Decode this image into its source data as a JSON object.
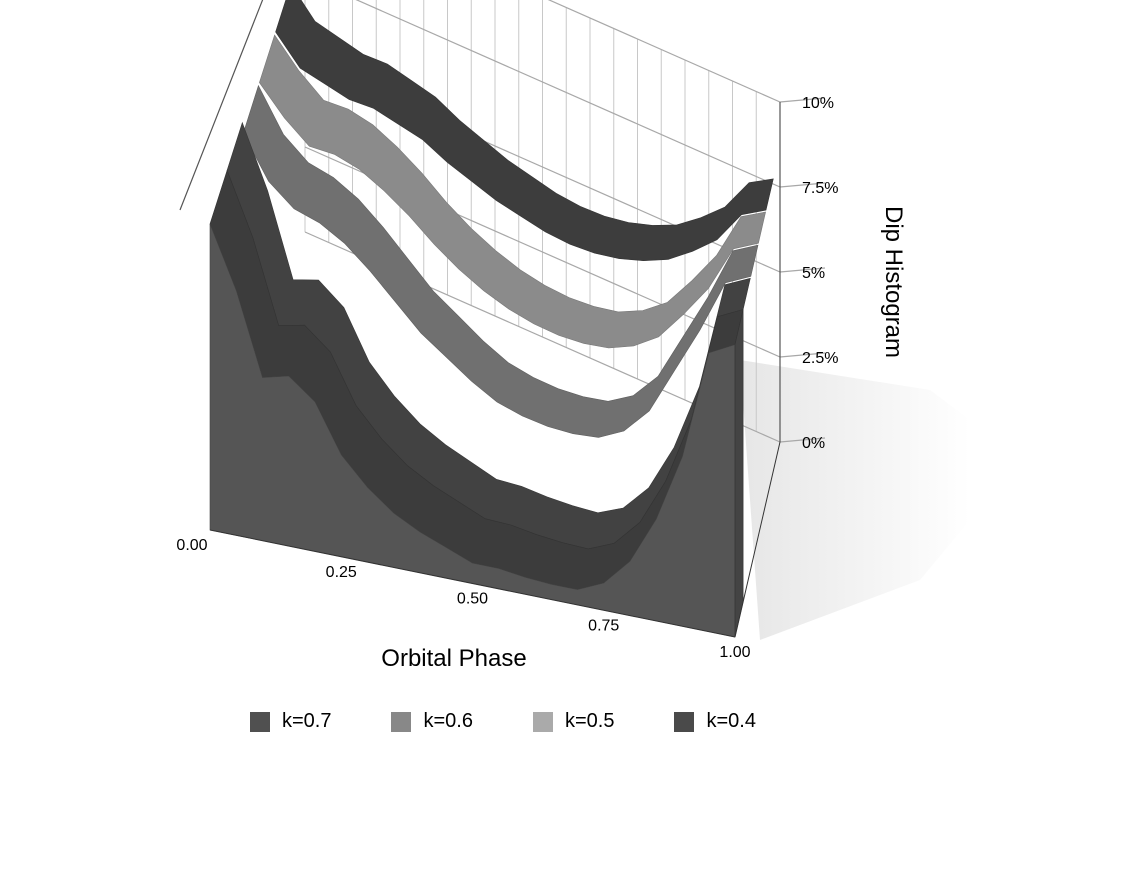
{
  "chart_data": {
    "type": "area",
    "variant": "3d-stacked-ribbon",
    "xlabel": "Orbital Phase",
    "ylabel": "Dip Histogram",
    "x_ticks": [
      "0.00",
      "0.25",
      "0.50",
      "0.75",
      "1.00"
    ],
    "y_ticks": [
      "0%",
      "2.5%",
      "5%",
      "7.5%",
      "10%"
    ],
    "xlim": [
      0,
      1
    ],
    "ylim": [
      0,
      10
    ],
    "grid": true,
    "legend_position": "bottom",
    "x": [
      0.0,
      0.05,
      0.1,
      0.15,
      0.2,
      0.25,
      0.3,
      0.35,
      0.4,
      0.45,
      0.5,
      0.55,
      0.6,
      0.65,
      0.7,
      0.75,
      0.8,
      0.85,
      0.9,
      0.95,
      1.0
    ],
    "series": [
      {
        "name": "k=0.7",
        "color": "#505050",
        "values": [
          9.0,
          7.2,
          4.8,
          5.0,
          4.4,
          3.0,
          2.2,
          1.6,
          1.2,
          0.9,
          0.6,
          0.6,
          0.5,
          0.45,
          0.45,
          0.8,
          1.6,
          3.0,
          5.0,
          8.2,
          8.6
        ]
      },
      {
        "name": "k=0.6",
        "color": "#888888",
        "values": [
          8.6,
          7.4,
          6.8,
          6.6,
          6.2,
          5.6,
          4.9,
          4.2,
          3.7,
          3.2,
          2.8,
          2.6,
          2.5,
          2.5,
          2.6,
          3.0,
          3.8,
          5.2,
          6.6,
          8.2,
          8.6
        ]
      },
      {
        "name": "k=0.5",
        "color": "#aaaaaa",
        "values": [
          8.6,
          7.8,
          7.2,
          7.2,
          7.0,
          6.6,
          6.1,
          5.5,
          5.0,
          4.6,
          4.3,
          4.1,
          4.0,
          4.0,
          4.1,
          4.4,
          4.9,
          5.8,
          6.8,
          8.2,
          8.6
        ]
      },
      {
        "name": "k=0.4",
        "color": "#4a4a4a",
        "values": [
          8.6,
          7.8,
          7.6,
          7.4,
          7.4,
          7.2,
          7.0,
          6.6,
          6.3,
          6.0,
          5.8,
          5.6,
          5.5,
          5.5,
          5.6,
          5.8,
          6.1,
          6.6,
          7.2,
          8.2,
          8.6
        ]
      }
    ]
  }
}
